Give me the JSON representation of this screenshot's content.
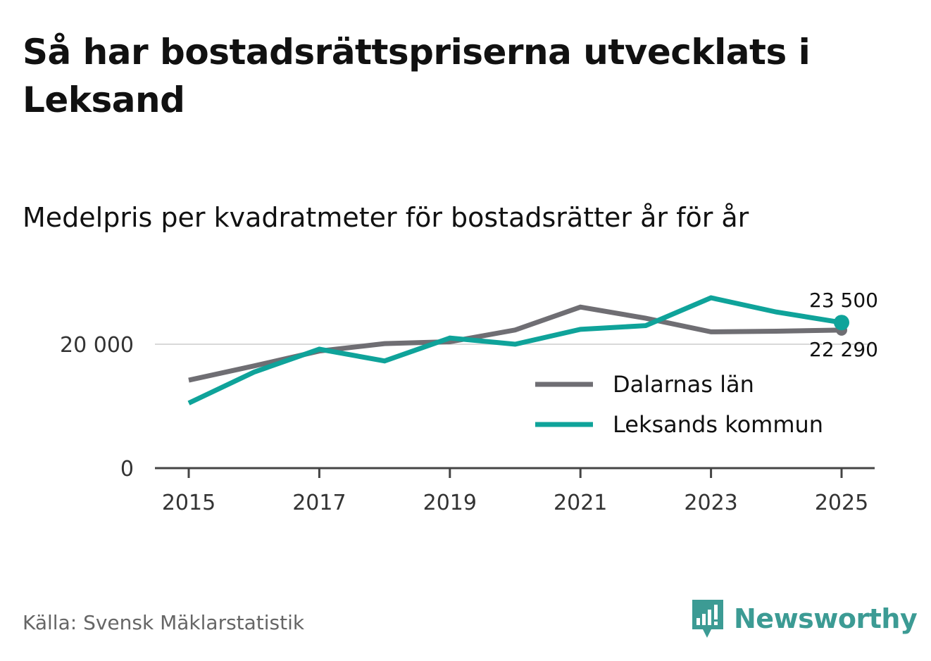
{
  "header": {
    "title": "Så har bostadsrättspriserna utvecklats i Leksand",
    "subtitle": "Medelpris per kvadratmeter för bostadsrätter år för år"
  },
  "footer": {
    "source": "Källa: Svensk Mäklarstatistik",
    "brand": "Newsworthy"
  },
  "colors": {
    "dalarna": "#6f6e73",
    "leksand": "#0fa39a",
    "brand": "#3c9b94",
    "grid": "#d9d9d9",
    "axis": "#444444"
  },
  "chart_data": {
    "type": "line",
    "title": "Medelpris per kvadratmeter för bostadsrätter år för år",
    "x": [
      2015,
      2016,
      2017,
      2018,
      2019,
      2020,
      2021,
      2022,
      2023,
      2024,
      2025
    ],
    "xticks": [
      2015,
      2017,
      2019,
      2021,
      2023,
      2025
    ],
    "xtick_labels": [
      "2015",
      "2017",
      "2019",
      "2021",
      "2023",
      "2025"
    ],
    "yticks": [
      0,
      20000
    ],
    "ytick_labels": [
      "0",
      "20 000"
    ],
    "ylim": [
      0,
      30000
    ],
    "gridlines": [
      20000
    ],
    "legend_position": "center-right",
    "series": [
      {
        "name": "Dalarnas län",
        "color": "#6f6e73",
        "values": [
          14200,
          16500,
          18900,
          20100,
          20400,
          22300,
          26000,
          24200,
          22000,
          22100,
          22290
        ],
        "end_label": "22 290"
      },
      {
        "name": "Leksands kommun",
        "color": "#0fa39a",
        "values": [
          10500,
          15500,
          19200,
          17300,
          21000,
          20000,
          22400,
          23000,
          27500,
          25200,
          23500
        ],
        "end_label": "23 500",
        "end_marker": true
      }
    ]
  }
}
